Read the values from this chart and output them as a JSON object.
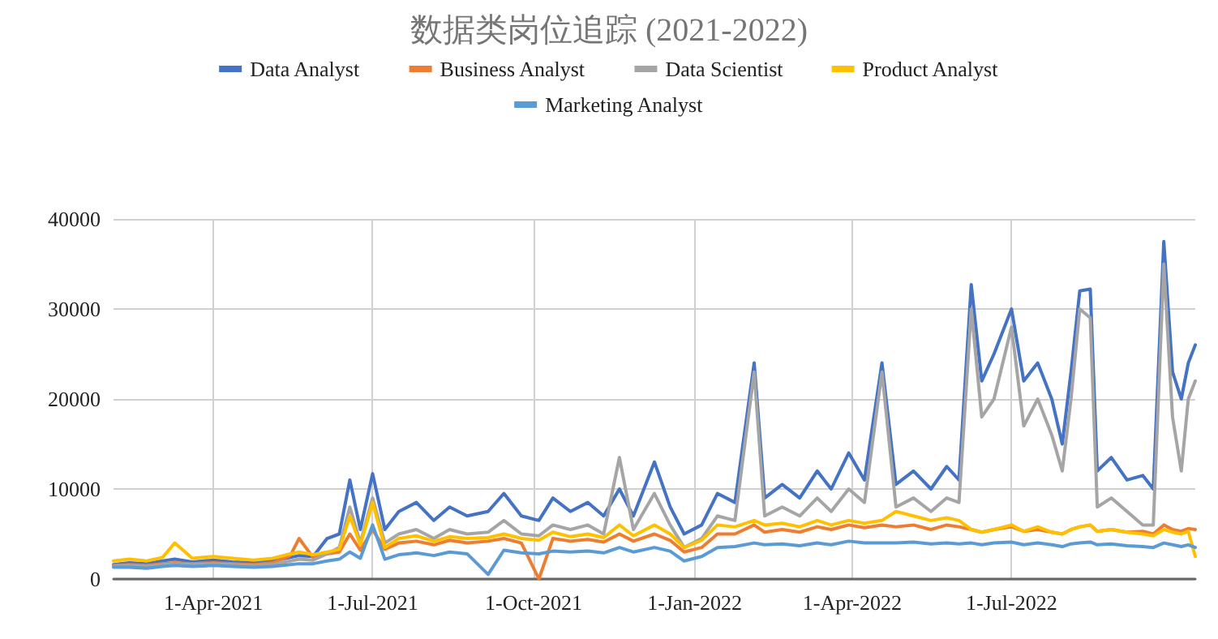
{
  "chart_data": {
    "type": "line",
    "title": "数据类岗位追踪 (2021-2022)",
    "x": [
      "2021-02-03",
      "2021-02-12",
      "2021-02-22",
      "2021-03-03",
      "2021-03-10",
      "2021-03-20",
      "2021-04-01",
      "2021-04-12",
      "2021-04-24",
      "2021-05-05",
      "2021-05-15",
      "2021-05-20",
      "2021-05-28",
      "2021-06-05",
      "2021-06-12",
      "2021-06-18",
      "2021-06-24",
      "2021-07-01",
      "2021-07-08",
      "2021-07-16",
      "2021-07-26",
      "2021-08-05",
      "2021-08-14",
      "2021-08-24",
      "2021-09-05",
      "2021-09-14",
      "2021-09-24",
      "2021-10-04",
      "2021-10-12",
      "2021-10-22",
      "2021-11-01",
      "2021-11-10",
      "2021-11-19",
      "2021-11-27",
      "2021-12-09",
      "2021-12-18",
      "2021-12-26",
      "2022-01-05",
      "2022-01-14",
      "2022-01-24",
      "2022-02-04",
      "2022-02-10",
      "2022-02-20",
      "2022-03-02",
      "2022-03-12",
      "2022-03-20",
      "2022-03-30",
      "2022-04-08",
      "2022-04-18",
      "2022-04-26",
      "2022-05-06",
      "2022-05-16",
      "2022-05-25",
      "2022-06-01",
      "2022-06-08",
      "2022-06-14",
      "2022-06-21",
      "2022-07-01",
      "2022-07-08",
      "2022-07-16",
      "2022-07-24",
      "2022-07-30",
      "2022-08-04",
      "2022-08-09",
      "2022-08-15",
      "2022-08-19",
      "2022-08-27",
      "2022-09-05",
      "2022-09-14",
      "2022-09-20",
      "2022-09-26",
      "2022-10-01",
      "2022-10-06",
      "2022-10-10",
      "2022-10-14"
    ],
    "series": [
      {
        "name": "Data Analyst",
        "color": "#4472c4",
        "values": [
          1600,
          1800,
          1700,
          2000,
          2200,
          1900,
          2100,
          1900,
          1800,
          2000,
          2400,
          2600,
          2500,
          4500,
          5000,
          11000,
          5500,
          11700,
          5500,
          7500,
          8500,
          6500,
          8000,
          7000,
          7500,
          9500,
          7000,
          6500,
          9000,
          7500,
          8500,
          7000,
          10000,
          7000,
          13000,
          8000,
          5000,
          6000,
          9500,
          8500,
          24000,
          9000,
          10500,
          9000,
          12000,
          10000,
          14000,
          11000,
          24000,
          10500,
          12000,
          10000,
          12500,
          11000,
          32700,
          22000,
          25000,
          30000,
          22000,
          24000,
          20000,
          15000,
          23000,
          32000,
          32200,
          12000,
          13500,
          11000,
          11500,
          10000,
          37500,
          23000,
          20000,
          24000,
          26000
        ]
      },
      {
        "name": "Business Analyst",
        "color": "#ed7d31",
        "values": [
          1500,
          1600,
          1500,
          1700,
          1800,
          1700,
          1800,
          1700,
          1600,
          1800,
          2600,
          4500,
          2400,
          2800,
          3000,
          5000,
          3200,
          5500,
          3300,
          4000,
          4200,
          3800,
          4300,
          4000,
          4200,
          4500,
          4000,
          0,
          4500,
          4200,
          4400,
          4100,
          5000,
          4200,
          5000,
          4300,
          3000,
          3500,
          5000,
          5000,
          6000,
          5200,
          5500,
          5200,
          5800,
          5500,
          6000,
          5700,
          6000,
          5800,
          6000,
          5500,
          6000,
          5800,
          5500,
          5200,
          5500,
          5800,
          5300,
          5500,
          5200,
          5000,
          5500,
          5800,
          6000,
          5300,
          5500,
          5200,
          5300,
          5000,
          6000,
          5500,
          5300,
          5600,
          5500
        ]
      },
      {
        "name": "Data Scientist",
        "color": "#a5a5a5",
        "values": [
          1400,
          1500,
          1400,
          1600,
          1700,
          1600,
          1700,
          1600,
          1500,
          1600,
          2000,
          2200,
          2100,
          2800,
          3500,
          8000,
          4000,
          9000,
          4000,
          5000,
          5500,
          4500,
          5500,
          5000,
          5200,
          6500,
          5000,
          4800,
          6000,
          5500,
          6000,
          5000,
          13500,
          5500,
          9500,
          6000,
          3500,
          4500,
          7000,
          6500,
          23000,
          7000,
          8000,
          7000,
          9000,
          7500,
          10000,
          8500,
          23000,
          8000,
          9000,
          7500,
          9000,
          8500,
          30000,
          18000,
          20000,
          28000,
          17000,
          20000,
          16000,
          12000,
          20000,
          30000,
          29000,
          8000,
          9000,
          7500,
          6000,
          6000,
          35000,
          18000,
          12000,
          20000,
          22000
        ]
      },
      {
        "name": "Product Analyst",
        "color": "#ffc000",
        "values": [
          2000,
          2200,
          2000,
          2400,
          4000,
          2300,
          2500,
          2300,
          2100,
          2300,
          2800,
          3000,
          2700,
          3000,
          3300,
          7000,
          3800,
          8500,
          3500,
          4500,
          4800,
          4200,
          4700,
          4500,
          4600,
          5000,
          4500,
          4300,
          5200,
          4700,
          5000,
          4600,
          6000,
          4800,
          6000,
          5000,
          3500,
          4300,
          6000,
          5800,
          6500,
          6000,
          6200,
          5800,
          6500,
          6000,
          6500,
          6200,
          6500,
          7500,
          7000,
          6500,
          6800,
          6500,
          5500,
          5200,
          5500,
          6000,
          5300,
          5800,
          5200,
          5000,
          5500,
          5800,
          6000,
          5300,
          5500,
          5200,
          5000,
          4800,
          5500,
          5200,
          5000,
          5300,
          2500
        ]
      },
      {
        "name": "Marketing Analyst",
        "color": "#5b9bd5",
        "values": [
          1300,
          1300,
          1200,
          1400,
          1500,
          1400,
          1500,
          1400,
          1300,
          1400,
          1600,
          1700,
          1700,
          2000,
          2200,
          3000,
          2300,
          6000,
          2200,
          2700,
          2900,
          2600,
          3000,
          2800,
          500,
          3200,
          2900,
          2800,
          3100,
          3000,
          3100,
          2900,
          3500,
          3000,
          3500,
          3100,
          2000,
          2500,
          3500,
          3600,
          4000,
          3800,
          3900,
          3700,
          4000,
          3800,
          4200,
          4000,
          4000,
          4000,
          4100,
          3900,
          4000,
          3900,
          4000,
          3800,
          4000,
          4100,
          3800,
          4000,
          3800,
          3600,
          3900,
          4000,
          4100,
          3800,
          3900,
          3700,
          3600,
          3500,
          4000,
          3800,
          3600,
          3800,
          3500
        ]
      }
    ],
    "xlim": [
      "2021-02-03",
      "2022-10-14"
    ],
    "xticks": [
      {
        "value": "2021-04-01",
        "label": "1-Apr-2021"
      },
      {
        "value": "2021-07-01",
        "label": "1-Jul-2021"
      },
      {
        "value": "2021-10-01",
        "label": "1-Oct-2021"
      },
      {
        "value": "2022-01-01",
        "label": "1-Jan-2022"
      },
      {
        "value": "2022-04-01",
        "label": "1-Apr-2022"
      },
      {
        "value": "2022-07-01",
        "label": "1-Jul-2022"
      }
    ],
    "ylim": [
      0,
      40000
    ],
    "yticks": [
      0,
      10000,
      20000,
      30000,
      40000
    ],
    "grid": true,
    "legend": "top",
    "marker": "none",
    "line_style": "solid"
  }
}
